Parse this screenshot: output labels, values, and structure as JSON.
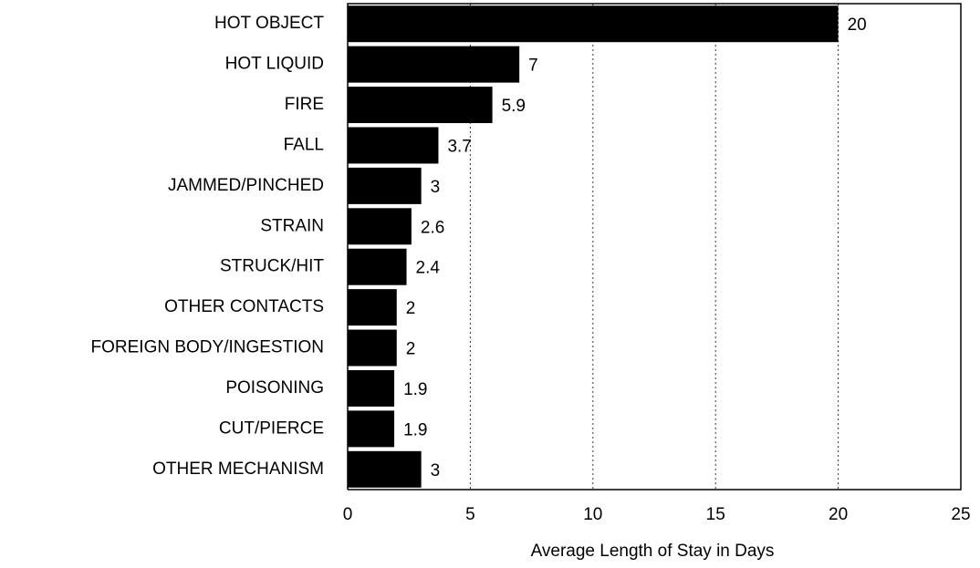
{
  "chart_data": {
    "type": "bar",
    "orientation": "horizontal",
    "categories": [
      "HOT OBJECT",
      "HOT LIQUID",
      "FIRE",
      "FALL",
      "JAMMED/PINCHED",
      "STRAIN",
      "STRUCK/HIT",
      "OTHER CONTACTS",
      "FOREIGN BODY/INGESTION",
      "POISONING",
      "CUT/PIERCE",
      "OTHER MECHANISM"
    ],
    "values": [
      20,
      7,
      5.9,
      3.7,
      3,
      2.6,
      2.4,
      2,
      2,
      1.9,
      1.9,
      3
    ],
    "color": "#000000",
    "xlabel": "Average Length of Stay in Days",
    "xlim": [
      0,
      25
    ],
    "xticks": [
      0,
      5,
      10,
      15,
      20,
      25
    ],
    "grid": true
  }
}
